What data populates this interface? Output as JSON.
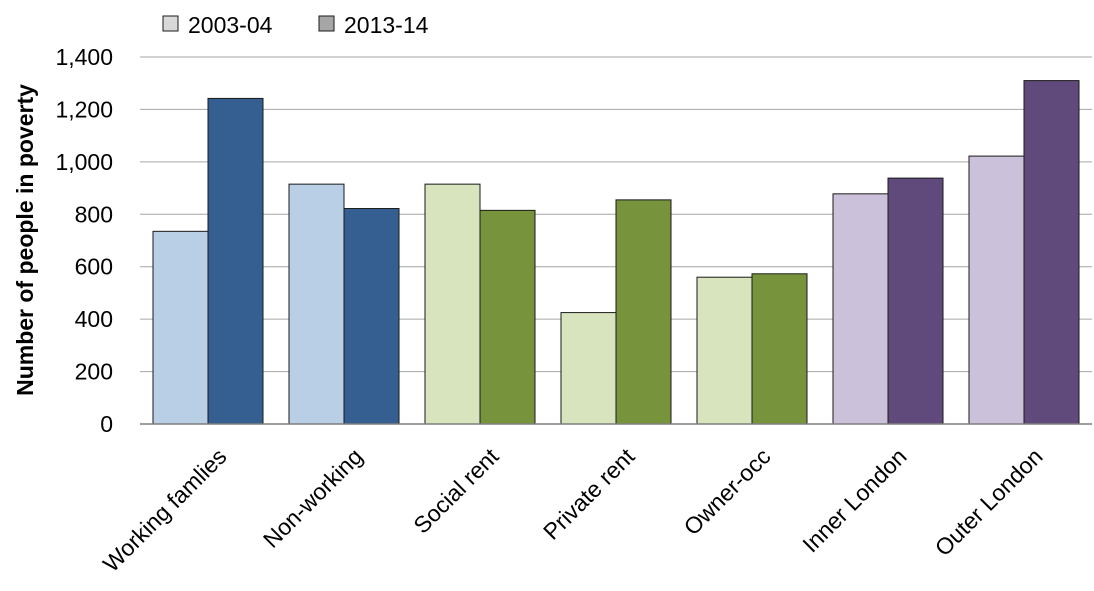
{
  "chart_data": {
    "type": "bar",
    "title": "",
    "xlabel": "",
    "ylabel": "Number of people in poverty",
    "ylim": [
      0,
      1400
    ],
    "yticks": [
      0,
      200,
      400,
      600,
      800,
      1000,
      1200,
      1400
    ],
    "ytick_labels": [
      "0",
      "200",
      "400",
      "600",
      "800",
      "1,000",
      "1,200",
      "1,400"
    ],
    "grid": true,
    "legend_position": "top-left",
    "categories": [
      "Working famlies",
      "Non-working",
      "Social rent",
      "Private rent",
      "Owner-occ",
      "Inner London",
      "Outer London"
    ],
    "series": [
      {
        "name": "2003-04",
        "values": [
          735,
          915,
          915,
          425,
          560,
          878,
          1022
        ],
        "legend_color": "#d9d9d9"
      },
      {
        "name": "2013-14",
        "values": [
          1242,
          822,
          815,
          855,
          573,
          938,
          1310
        ],
        "legend_color": "#a6a6a6"
      }
    ],
    "category_colors": [
      {
        "light": "#b9cfe6",
        "dark": "#355f91"
      },
      {
        "light": "#b9cfe6",
        "dark": "#355f91"
      },
      {
        "light": "#d8e4bd",
        "dark": "#77933c"
      },
      {
        "light": "#d8e4bd",
        "dark": "#77933c"
      },
      {
        "light": "#d8e4bd",
        "dark": "#77933c"
      },
      {
        "light": "#ccc1da",
        "dark": "#604a7b"
      },
      {
        "light": "#ccc1da",
        "dark": "#604a7b"
      }
    ]
  }
}
